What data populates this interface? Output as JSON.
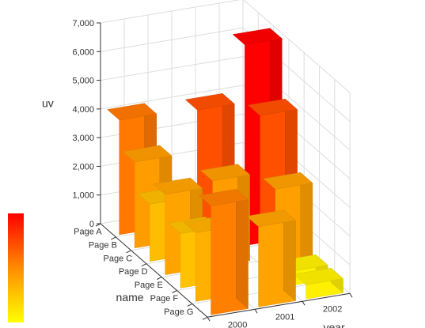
{
  "chart_data": {
    "type": "bar",
    "title": "",
    "x_axis": {
      "name": "name",
      "categories": [
        "Page A",
        "Page B",
        "Page C",
        "Page D",
        "Page E",
        "Page F",
        "Page G"
      ]
    },
    "y_axis": {
      "name": "year",
      "categories": [
        "2000",
        "2001",
        "2002"
      ]
    },
    "z_axis": {
      "name": "uv",
      "min": 0,
      "max": 7000,
      "ticks": [
        "0",
        "1,000",
        "2,000",
        "3,000",
        "4,000",
        "5,000",
        "6,000",
        "7,000"
      ]
    },
    "grid": true,
    "visual_map": {
      "min": 0,
      "max": 7000,
      "colors": [
        "#ffff00",
        "#ff8c00",
        "#ff0000"
      ],
      "placement": "bottom-left"
    },
    "bars": [
      {
        "name": "Page A",
        "year": "2000",
        "value": 4000
      },
      {
        "name": "Page A",
        "year": "2001",
        "value": 0
      },
      {
        "name": "Page A",
        "year": "2002",
        "value": 0
      },
      {
        "name": "Page B",
        "year": "2000",
        "value": 3000
      },
      {
        "name": "Page B",
        "year": "2001",
        "value": 0
      },
      {
        "name": "Page B",
        "year": "2002",
        "value": 0
      },
      {
        "name": "Page C",
        "year": "2000",
        "value": 2000
      },
      {
        "name": "Page C",
        "year": "2001",
        "value": 5000
      },
      {
        "name": "Page C",
        "year": "2002",
        "value": 7000
      },
      {
        "name": "Page D",
        "year": "2000",
        "value": 2800
      },
      {
        "name": "Page D",
        "year": "2001",
        "value": 3000
      },
      {
        "name": "Page D",
        "year": "2002",
        "value": 5000
      },
      {
        "name": "Page E",
        "year": "2000",
        "value": 1900
      },
      {
        "name": "Page E",
        "year": "2001",
        "value": 0
      },
      {
        "name": "Page E",
        "year": "2002",
        "value": 2900
      },
      {
        "name": "Page F",
        "year": "2000",
        "value": 2400
      },
      {
        "name": "Page F",
        "year": "2001",
        "value": 0
      },
      {
        "name": "Page F",
        "year": "2002",
        "value": 500
      },
      {
        "name": "Page G",
        "year": "2000",
        "value": 3800
      },
      {
        "name": "Page G",
        "year": "2001",
        "value": 2800
      },
      {
        "name": "Page G",
        "year": "2002",
        "value": 500
      }
    ]
  }
}
